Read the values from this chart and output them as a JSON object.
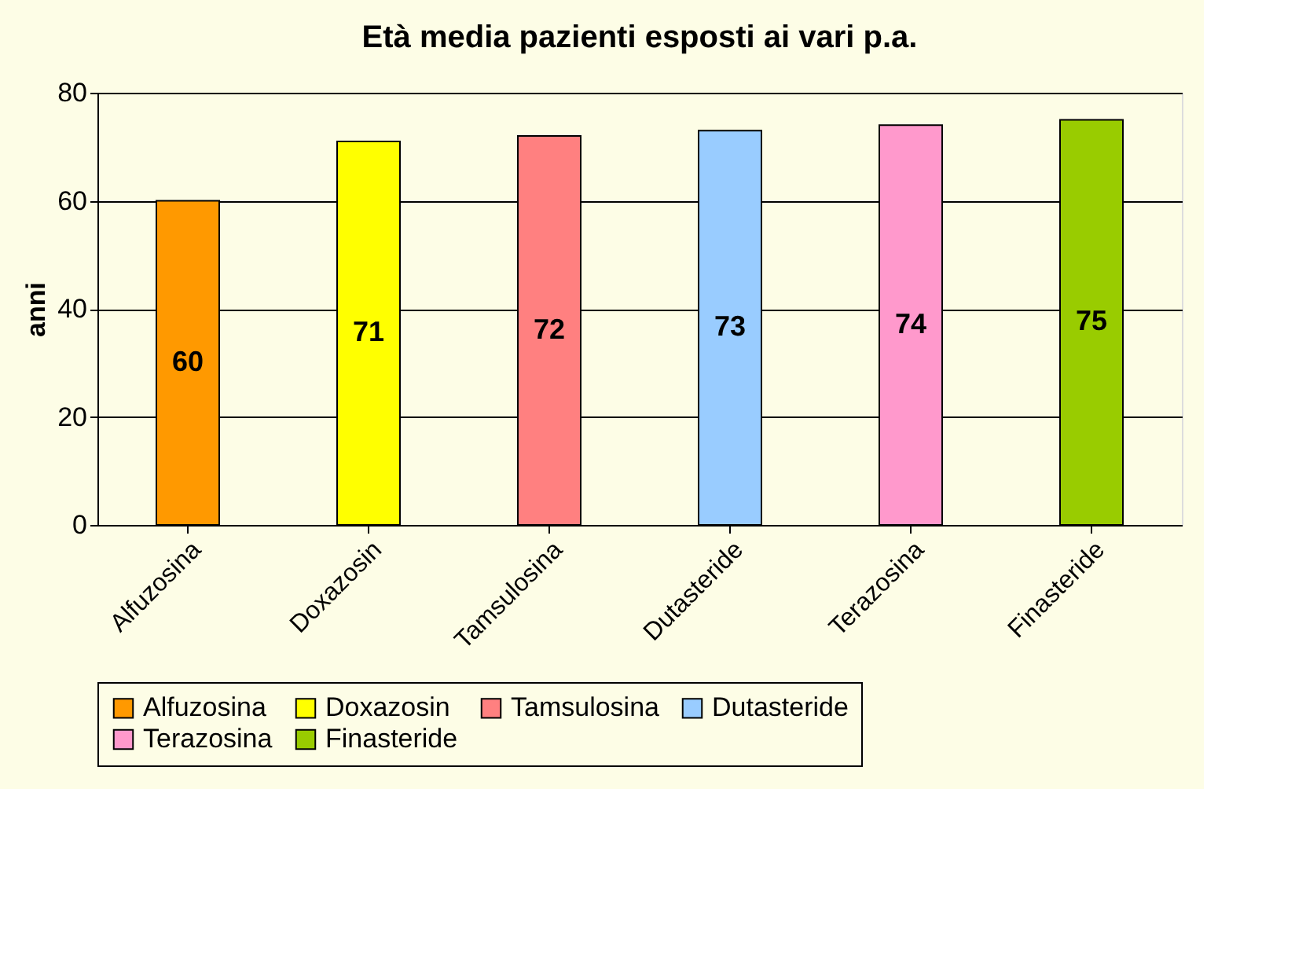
{
  "chart_data": {
    "type": "bar",
    "title": "Età media pazienti esposti ai vari p.a.",
    "ylabel": "anni",
    "categories": [
      "Alfuzosina",
      "Doxazosin",
      "Tamsulosina",
      "Dutasteride",
      "Terazosina",
      "Finasteride"
    ],
    "series": [
      {
        "name": "Alfuzosina",
        "color": "#ff9900",
        "values": [
          60,
          null,
          null,
          null,
          null,
          null
        ]
      },
      {
        "name": "Doxazosin",
        "color": "#ffff00",
        "values": [
          null,
          71,
          null,
          null,
          null,
          null
        ]
      },
      {
        "name": "Tamsulosina",
        "color": "#ff8080",
        "values": [
          null,
          null,
          72,
          null,
          null,
          null
        ]
      },
      {
        "name": "Dutasteride",
        "color": "#99ccff",
        "values": [
          null,
          null,
          null,
          73,
          null,
          null
        ]
      },
      {
        "name": "Terazosina",
        "color": "#ff99cc",
        "values": [
          null,
          null,
          null,
          null,
          74,
          null
        ]
      },
      {
        "name": "Finasteride",
        "color": "#99cc00",
        "values": [
          null,
          null,
          null,
          null,
          null,
          75
        ]
      }
    ],
    "ylim": [
      0,
      80
    ],
    "yticks": [
      0,
      20,
      40,
      60,
      80
    ],
    "grid": "y",
    "legend": "bottom",
    "data_labels": true
  }
}
